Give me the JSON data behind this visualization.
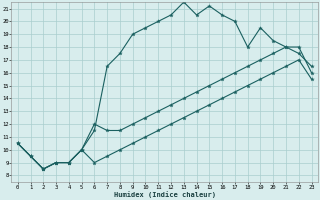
{
  "xlabel": "Humidex (Indice chaleur)",
  "bg_color": "#d8eded",
  "grid_color": "#aacece",
  "line_color": "#1a6060",
  "xlim": [
    -0.5,
    23.5
  ],
  "ylim": [
    7.5,
    21.5
  ],
  "yticks": [
    8,
    9,
    10,
    11,
    12,
    13,
    14,
    15,
    16,
    17,
    18,
    19,
    20,
    21
  ],
  "xticks": [
    0,
    1,
    2,
    3,
    4,
    5,
    6,
    7,
    8,
    9,
    10,
    11,
    12,
    13,
    14,
    15,
    16,
    17,
    18,
    19,
    20,
    21,
    22,
    23
  ],
  "line1_x": [
    0,
    1,
    2,
    3,
    4,
    5,
    6,
    7,
    8,
    9,
    10,
    11,
    12,
    13,
    14,
    15,
    16,
    17,
    18,
    19,
    20,
    21,
    22,
    23
  ],
  "line1_y": [
    10.5,
    9.5,
    8.5,
    9.0,
    9.0,
    10.0,
    11.5,
    16.5,
    17.5,
    19.0,
    19.5,
    20.0,
    20.5,
    21.5,
    20.5,
    21.2,
    20.5,
    20.0,
    18.0,
    19.5,
    18.5,
    18.0,
    17.5,
    16.5
  ],
  "line2_x": [
    0,
    1,
    2,
    3,
    4,
    5,
    6,
    7,
    8,
    9,
    10,
    11,
    12,
    13,
    14,
    15,
    16,
    17,
    18,
    19,
    20,
    21,
    22,
    23
  ],
  "line2_y": [
    10.5,
    9.5,
    8.5,
    9.0,
    9.0,
    10.0,
    12.0,
    11.5,
    11.5,
    12.0,
    12.5,
    13.0,
    13.5,
    14.0,
    14.5,
    15.0,
    15.5,
    16.0,
    16.5,
    17.0,
    17.5,
    18.0,
    18.0,
    16.0
  ],
  "line3_x": [
    0,
    1,
    2,
    3,
    4,
    5,
    6,
    7,
    8,
    9,
    10,
    11,
    12,
    13,
    14,
    15,
    16,
    17,
    18,
    19,
    20,
    21,
    22,
    23
  ],
  "line3_y": [
    10.5,
    9.5,
    8.5,
    9.0,
    9.0,
    10.0,
    9.0,
    9.5,
    10.0,
    10.5,
    11.0,
    11.5,
    12.0,
    12.5,
    13.0,
    13.5,
    14.0,
    14.5,
    15.0,
    15.5,
    16.0,
    16.5,
    17.0,
    15.5
  ]
}
